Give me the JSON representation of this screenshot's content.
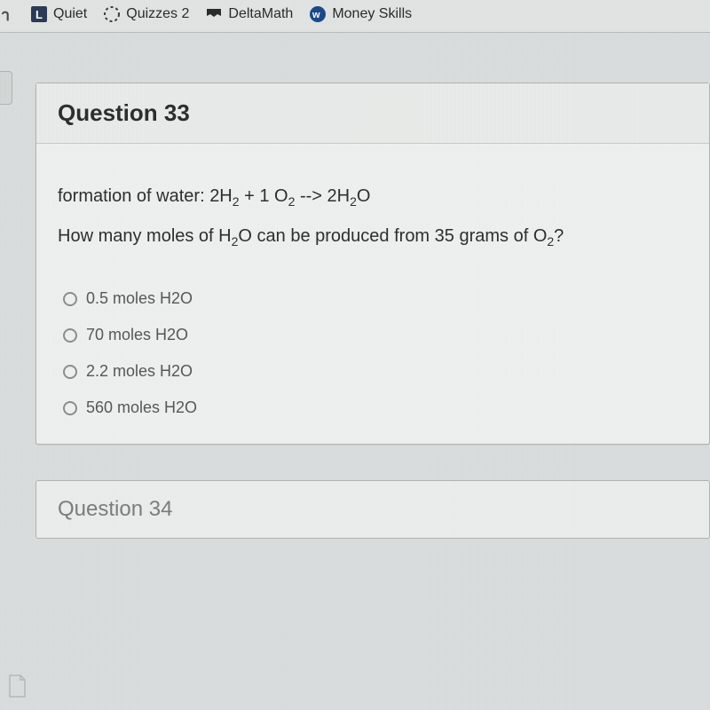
{
  "bookmarks": [
    {
      "label": "",
      "icon": "h-icon"
    },
    {
      "label": "Quiet",
      "icon": "l-square-icon"
    },
    {
      "label": "Quizzes 2",
      "icon": "dotted-circle-icon"
    },
    {
      "label": "DeltaMath",
      "icon": "banner-icon"
    },
    {
      "label": "Money Skills",
      "icon": "w-circle-icon"
    }
  ],
  "question": {
    "title": "Question 33",
    "formation_prefix": "formation of water: ",
    "equation": "2H<sub>2</sub> + 1 O<sub>2</sub> --> 2H<sub>2</sub>O",
    "prompt": "How many moles of H<sub>2</sub>O can be produced from 35 grams of O<sub>2</sub>?",
    "options": [
      "0.5 moles H2O",
      "70 moles H2O",
      "2.2 moles H2O",
      "560 moles H2O"
    ]
  },
  "next_question_title": "Question 34",
  "colors": {
    "page_bg": "#d8dcdc",
    "card_bg": "#ecefed",
    "border": "#b0b3b2",
    "text": "#2d2f2e",
    "muted_text": "#555857"
  }
}
